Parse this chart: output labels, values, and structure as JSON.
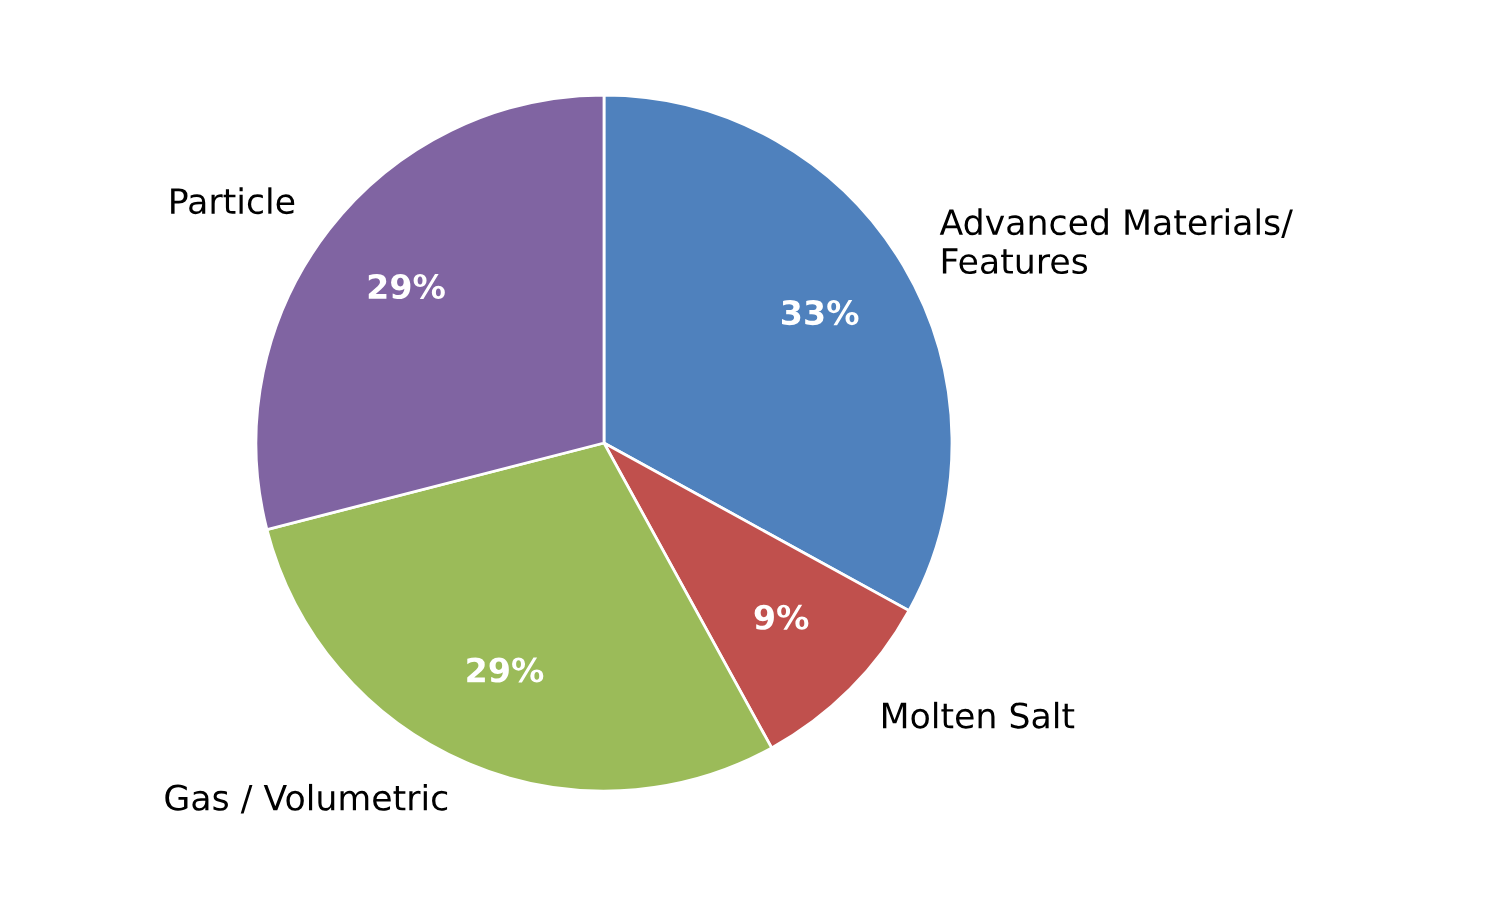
{
  "chart_data": {
    "type": "pie",
    "categories": [
      "Advanced Materials/\nFeatures",
      "Molten Salt",
      "Gas / Volumetric",
      "Particle"
    ],
    "values": [
      33,
      9,
      29,
      29
    ],
    "colors": [
      "#4f81bd",
      "#c0504d",
      "#9bbb59",
      "#8064a2"
    ],
    "value_labels": [
      "33%",
      "9%",
      "29%",
      "29%"
    ],
    "legend": false
  }
}
